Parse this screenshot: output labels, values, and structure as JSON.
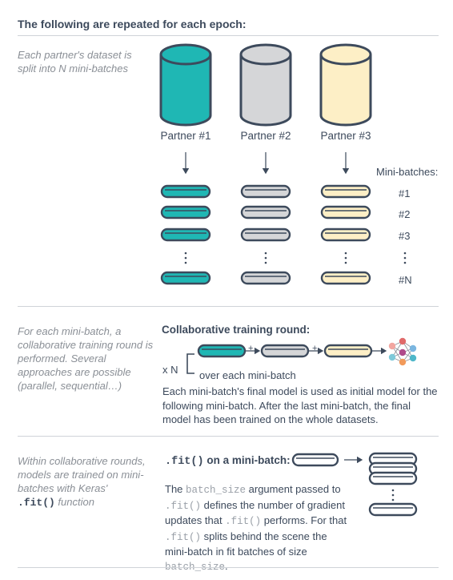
{
  "header": "The following are repeated for each epoch:",
  "section1": {
    "side": "Each partner's dataset is split into N mini-batches",
    "partners": [
      "Partner #1",
      "Partner #2",
      "Partner #3"
    ],
    "minibatches_title": "Mini-batches:",
    "minibatch_labels": [
      "#1",
      "#2",
      "#3",
      "#N"
    ]
  },
  "section2": {
    "side": "For each mini-batch, a collaborative training round is performed. Several approaches are possible (parallel, sequential…)",
    "title": "Collaborative training round:",
    "xn": "x N",
    "over": "over each mini-batch",
    "plus": "+",
    "body": "Each mini-batch's final model is used as initial model for the following mini-batch. After the last mini-batch, the final model has been trained on the whole datasets."
  },
  "section3": {
    "side_prefix": "Within collaborative rounds, models are trained on mini-batches with Keras' ",
    "side_code": ".fit()",
    "side_suffix": " function",
    "title_code": ".fit()",
    "title_rest": " on a mini-batch:",
    "p1": "The ",
    "c1": "batch_size",
    "p2": " argument passed to ",
    "c2": ".fit()",
    "p3": " defines the number of gradient updates that ",
    "c3": ".fit()",
    "p4": " performs. For that ",
    "c4": ".fit()",
    "p5": " splits behind the scene the mini-batch in fit batches of size ",
    "c5": "batch_size",
    "p6": "."
  },
  "colors": {
    "teal": "#1fb7b4",
    "gray": "#d5d6d8",
    "cream": "#fdefc6",
    "stroke": "#3d4a5c",
    "rule": "#cfd3d8"
  }
}
